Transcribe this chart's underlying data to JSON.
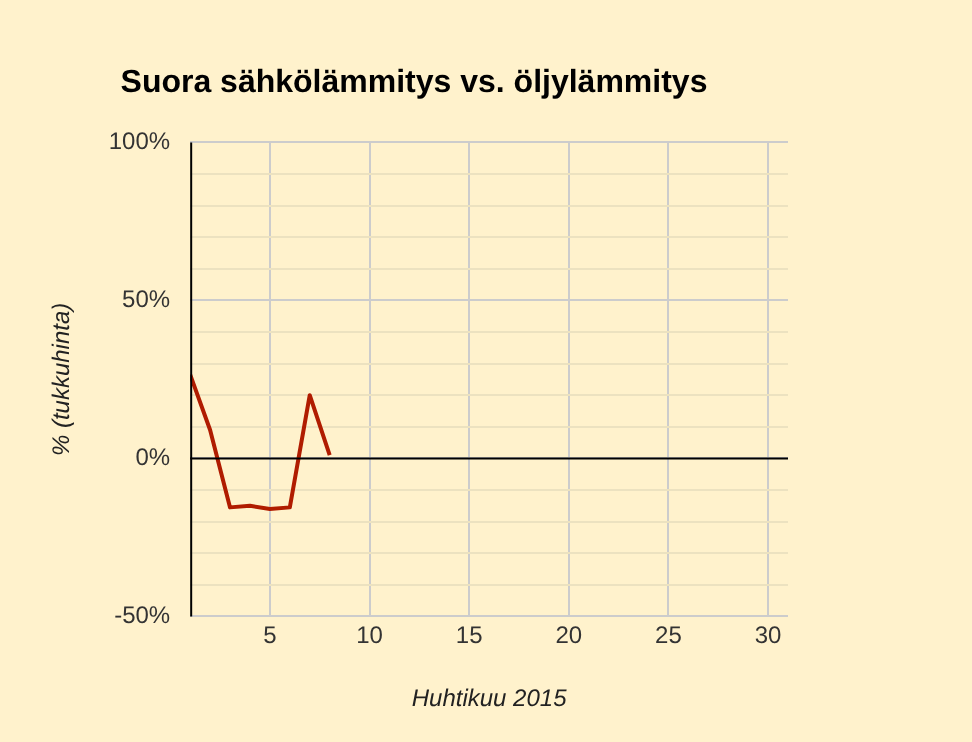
{
  "chart_data": {
    "type": "line",
    "title": "Suora sähkölämmitys vs. öljylämmitys",
    "xlabel": "Huhtikuu 2015",
    "ylabel": "% (tukkuhinta)",
    "x": [
      1,
      2,
      3,
      4,
      5,
      6,
      7,
      8
    ],
    "series": [
      {
        "color": "#b01c00",
        "values": [
          26.5,
          9,
          -15.5,
          -15,
          -16,
          -15.5,
          20,
          1
        ]
      }
    ],
    "xlim": [
      1,
      31
    ],
    "xticks": [
      5,
      10,
      15,
      20,
      25,
      30
    ],
    "ylim": [
      -50,
      100
    ],
    "yticks": [
      {
        "value": -50,
        "label": "-50%"
      },
      {
        "value": -40,
        "label": null
      },
      {
        "value": -30,
        "label": null
      },
      {
        "value": -20,
        "label": null
      },
      {
        "value": -10,
        "label": null
      },
      {
        "value": 0,
        "label": "0%"
      },
      {
        "value": 10,
        "label": null
      },
      {
        "value": 20,
        "label": null
      },
      {
        "value": 30,
        "label": null
      },
      {
        "value": 40,
        "label": null
      },
      {
        "value": 50,
        "label": "50%"
      },
      {
        "value": 60,
        "label": null
      },
      {
        "value": 70,
        "label": null
      },
      {
        "value": 80,
        "label": null
      },
      {
        "value": 90,
        "label": null
      },
      {
        "value": 100,
        "label": "100%"
      }
    ],
    "ref_lines": [
      {
        "axis": "y",
        "value": 0,
        "color": "#000000"
      }
    ],
    "grid": true,
    "legend": false,
    "marker": "none",
    "line_style": "solid"
  }
}
